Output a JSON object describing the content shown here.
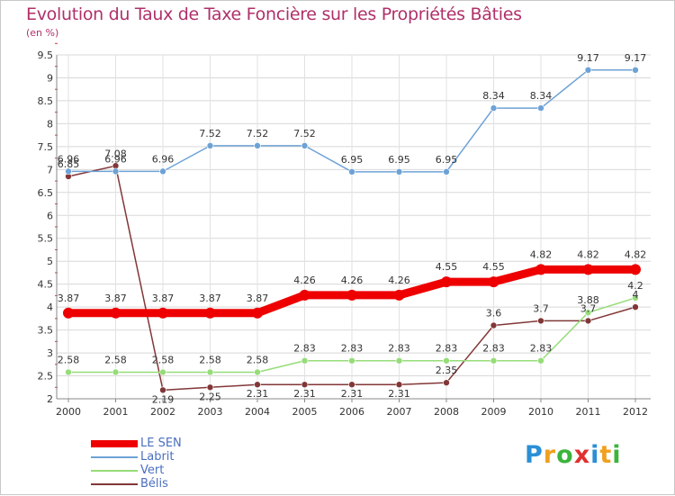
{
  "header": {
    "title": "Evolution du Taux de Taxe Foncière sur les Propriétés Bâties",
    "unit": "(en %)"
  },
  "chart_data": {
    "type": "line",
    "title": "Evolution du Taux de Taxe Foncière sur les Propriétés Bâties",
    "ylabel": "(en %)",
    "xlabel": "",
    "ylim": [
      2,
      9.5
    ],
    "yticks": [
      "2",
      "2.5",
      "3",
      "3.5",
      "4",
      "4.5",
      "5",
      "5.5",
      "6",
      "6.5",
      "7",
      "7.5",
      "8",
      "8.5",
      "9",
      "9.5"
    ],
    "categories": [
      "2000",
      "2001",
      "2002",
      "2003",
      "2004",
      "2005",
      "2006",
      "2007",
      "2008",
      "2009",
      "2010",
      "2011",
      "2012"
    ],
    "series": [
      {
        "name": "LE SEN",
        "color": "#ee0000",
        "values": [
          3.87,
          3.87,
          3.87,
          3.87,
          3.87,
          4.26,
          4.26,
          4.26,
          4.55,
          4.55,
          4.82,
          4.82,
          4.82
        ],
        "labels": [
          "3.87",
          "3.87",
          "3.87",
          "3.87",
          "3.87",
          "4.26",
          "4.26",
          "4.26",
          "4.55",
          "4.55",
          "4.82",
          "4.82",
          "4.82"
        ]
      },
      {
        "name": "Labrit",
        "color": "#6ea2d6",
        "values": [
          6.96,
          6.96,
          6.96,
          7.52,
          7.52,
          7.52,
          6.95,
          6.95,
          6.95,
          8.34,
          8.34,
          9.17,
          9.17
        ],
        "labels": [
          "6.96",
          "6.96",
          "6.96",
          "7.52",
          "7.52",
          "7.52",
          "6.95",
          "6.95",
          "6.95",
          "8.34",
          "8.34",
          "9.17",
          "9.17"
        ]
      },
      {
        "name": "Vert",
        "color": "#96dc78",
        "values": [
          2.58,
          2.58,
          2.58,
          2.58,
          2.58,
          2.83,
          2.83,
          2.83,
          2.83,
          2.83,
          2.83,
          3.88,
          4.2
        ],
        "labels": [
          "2.58",
          "2.58",
          "2.58",
          "2.58",
          "2.58",
          "2.83",
          "2.83",
          "2.83",
          "2.83",
          "2.83",
          "2.83",
          "3.88",
          "4.2"
        ]
      },
      {
        "name": "Bélis",
        "color": "#823737",
        "values": [
          6.85,
          7.08,
          2.19,
          2.25,
          2.31,
          2.31,
          2.31,
          2.31,
          2.35,
          3.6,
          3.7,
          3.7,
          4.0
        ],
        "labels": [
          "6.85",
          "7.08",
          "2.19",
          "2.25",
          "2.31",
          "2.31",
          "2.31",
          "2.31",
          "2.35",
          "3.6",
          "3.7",
          "3.7",
          "4"
        ]
      }
    ],
    "legend_position": "bottom-left"
  },
  "legend": {
    "items": [
      {
        "label": "LE SEN",
        "color": "#ee0000"
      },
      {
        "label": "Labrit",
        "color": "#6ea2d6"
      },
      {
        "label": "Vert",
        "color": "#96dc78"
      },
      {
        "label": "Bélis",
        "color": "#823737"
      }
    ]
  },
  "logo": {
    "letters": [
      "P",
      "r",
      "o",
      "x",
      "i",
      "t",
      "i"
    ],
    "colors": [
      "#2a8fd6",
      "#f0a020",
      "#3cb43c",
      "#e03030",
      "#2a8fd6",
      "#f0a020",
      "#3cb43c"
    ]
  }
}
